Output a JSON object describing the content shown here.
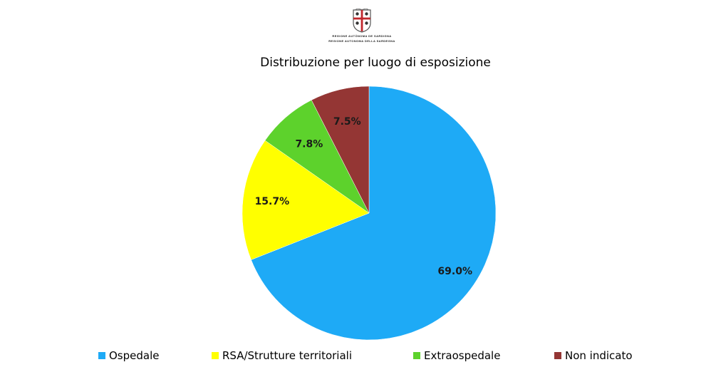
{
  "logo": {
    "line1": "REGIONE AUTÒNOMA DE SARDIGNA",
    "line2": "REGIONE AUTONOMA DELLA SARDEGNA"
  },
  "chart_data": {
    "type": "pie",
    "title": "Distribuzione per luogo di esposizione",
    "slices": [
      {
        "name": "Ospedale",
        "value": 69.0,
        "label": "69.0%",
        "color": "#1EAAF6"
      },
      {
        "name": "RSA/Strutture territoriali",
        "value": 15.7,
        "label": "15.7%",
        "color": "#FFFF00"
      },
      {
        "name": "Extraospedale",
        "value": 7.8,
        "label": "7.8%",
        "color": "#5DD22C"
      },
      {
        "name": "Non indicato",
        "value": 7.5,
        "label": "7.5%",
        "color": "#943634"
      }
    ],
    "legend_position": "bottom"
  }
}
